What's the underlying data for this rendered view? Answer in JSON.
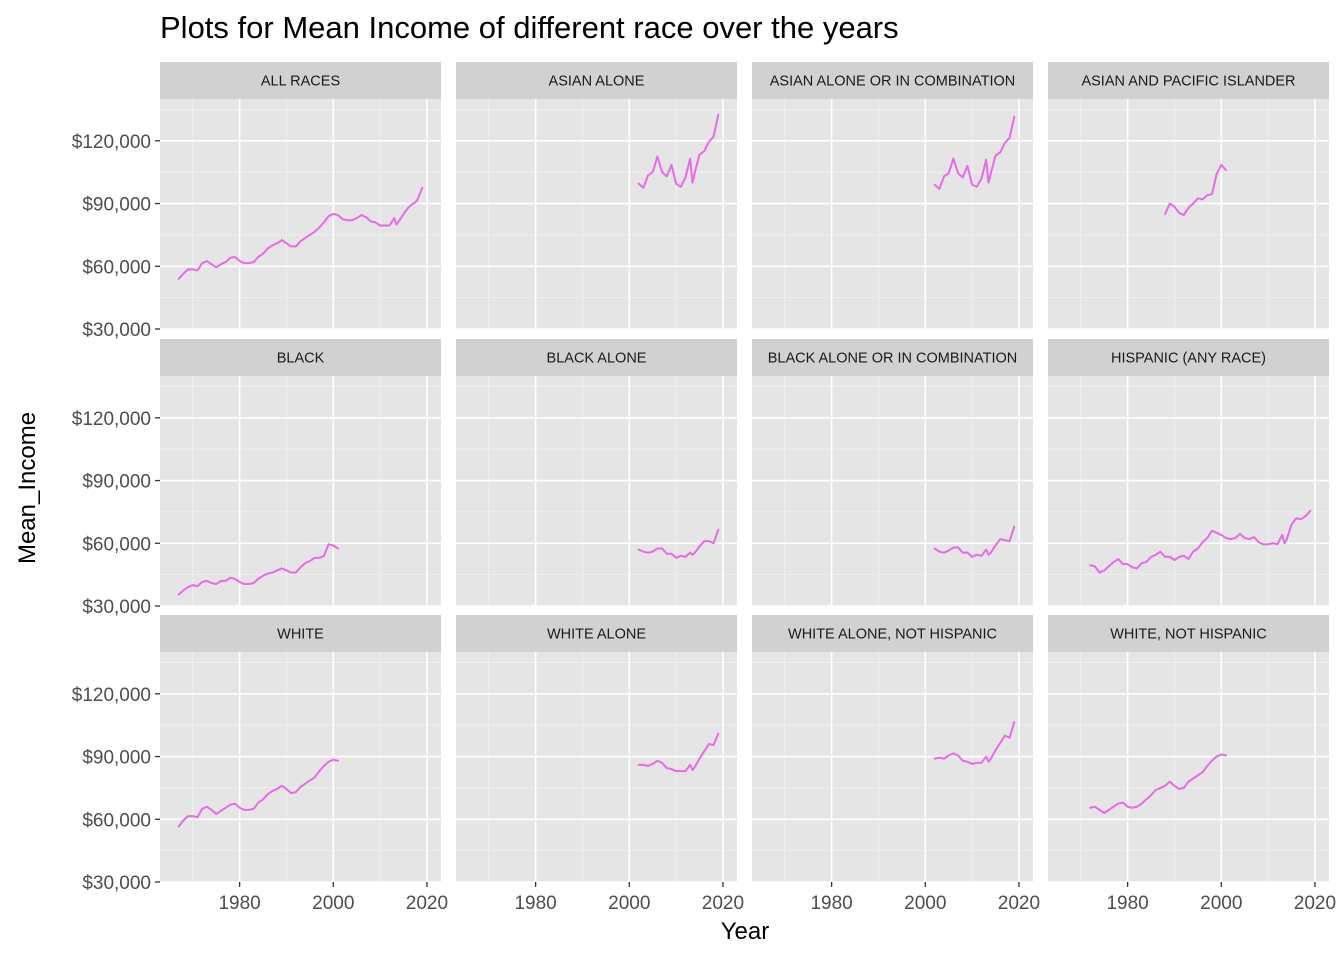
{
  "chart_data": {
    "type": "line",
    "title": "Plots for Mean Income of different race over the years",
    "xlabel": "Year",
    "ylabel": "Mean_Income",
    "xlim": [
      1963,
      2023
    ],
    "ylim": [
      30000,
      140000
    ],
    "x_ticks": [
      1980,
      2000,
      2020
    ],
    "x_tick_labels": [
      "1980",
      "2000",
      "2020"
    ],
    "y_ticks": [
      30000,
      60000,
      90000,
      120000
    ],
    "y_tick_labels": [
      "$30,000",
      "$60,000",
      "$90,000",
      "$120,000"
    ],
    "grid": true,
    "legend": "none",
    "line_color": "#e86ae9",
    "panel_background": "#e5e5e5",
    "strip_background": "#d1d1d1",
    "layout": {
      "rows": 3,
      "cols": 4
    },
    "facets": [
      {
        "name": "ALL RACES",
        "x": [
          1967,
          1968,
          1969,
          1970,
          1971,
          1972,
          1973,
          1974,
          1975,
          1976,
          1977,
          1978,
          1979,
          1980,
          1981,
          1982,
          1983,
          1984,
          1985,
          1986,
          1987,
          1988,
          1989,
          1990,
          1991,
          1992,
          1993,
          1994,
          1995,
          1996,
          1997,
          1998,
          1999,
          2000,
          2001,
          2002,
          2003,
          2004,
          2005,
          2006,
          2007,
          2008,
          2009,
          2010,
          2011,
          2012,
          2013,
          2013.5,
          2014,
          2015,
          2016,
          2017,
          2017.5,
          2018,
          2019
        ],
        "y": [
          54000,
          56500,
          58500,
          58500,
          58000,
          61500,
          62500,
          61000,
          59500,
          61000,
          62000,
          64000,
          64500,
          62500,
          61500,
          61500,
          62000,
          64500,
          66000,
          68500,
          70000,
          71000,
          72500,
          71000,
          69500,
          69500,
          72000,
          73500,
          75000,
          76500,
          78500,
          81000,
          84000,
          85000,
          84500,
          82500,
          82000,
          82000,
          83000,
          84500,
          83500,
          81500,
          81000,
          79500,
          79500,
          79500,
          83000,
          80000,
          81500,
          85000,
          88000,
          90000,
          90500,
          92000,
          97500
        ]
      },
      {
        "name": "ASIAN ALONE",
        "x": [
          2002,
          2003,
          2004,
          2005,
          2006,
          2007,
          2008,
          2009,
          2010,
          2011,
          2012,
          2013,
          2013.5,
          2014,
          2015,
          2016,
          2017,
          2018,
          2019
        ],
        "y": [
          99500,
          97500,
          103500,
          105000,
          112500,
          105000,
          103000,
          108500,
          99500,
          98000,
          102500,
          111500,
          100000,
          105000,
          113500,
          115000,
          119500,
          122000,
          132500
        ]
      },
      {
        "name": "ASIAN ALONE OR IN COMBINATION",
        "x": [
          2002,
          2003,
          2004,
          2005,
          2006,
          2007,
          2008,
          2009,
          2010,
          2011,
          2012,
          2013,
          2013.5,
          2014,
          2015,
          2016,
          2017,
          2018,
          2019
        ],
        "y": [
          99000,
          97000,
          103000,
          104500,
          111500,
          104500,
          102500,
          108000,
          99000,
          98000,
          102000,
          111000,
          100000,
          104500,
          113000,
          114500,
          119000,
          121500,
          131500
        ]
      },
      {
        "name": "ASIAN AND PACIFIC ISLANDER",
        "x": [
          1988,
          1989,
          1990,
          1991,
          1992,
          1993,
          1994,
          1995,
          1996,
          1997,
          1998,
          1999,
          2000,
          2001
        ],
        "y": [
          85000,
          90000,
          88500,
          85500,
          84500,
          88000,
          90000,
          92500,
          92000,
          94000,
          94500,
          104000,
          108500,
          106000
        ]
      },
      {
        "name": "BLACK",
        "x": [
          1967,
          1968,
          1969,
          1970,
          1971,
          1972,
          1973,
          1974,
          1975,
          1976,
          1977,
          1978,
          1979,
          1980,
          1981,
          1982,
          1983,
          1984,
          1985,
          1986,
          1987,
          1988,
          1989,
          1990,
          1991,
          1992,
          1993,
          1994,
          1995,
          1996,
          1997,
          1998,
          1999,
          2000,
          2001
        ],
        "y": [
          35500,
          37500,
          39000,
          40000,
          39500,
          41500,
          42000,
          41000,
          40500,
          42000,
          42000,
          43500,
          43000,
          41500,
          40500,
          40500,
          41000,
          43000,
          44500,
          45500,
          46000,
          47000,
          48000,
          47000,
          46000,
          46000,
          48500,
          50500,
          51500,
          53000,
          53000,
          54000,
          59500,
          59000,
          57500
        ]
      },
      {
        "name": "BLACK ALONE",
        "x": [
          2002,
          2003,
          2004,
          2005,
          2006,
          2007,
          2008,
          2009,
          2010,
          2011,
          2012,
          2013,
          2013.5,
          2014,
          2015,
          2016,
          2017,
          2018,
          2019
        ],
        "y": [
          57000,
          56000,
          55500,
          56000,
          57500,
          57500,
          55000,
          55000,
          53000,
          54000,
          53500,
          55500,
          54500,
          55500,
          58500,
          61000,
          61000,
          60000,
          66500
        ]
      },
      {
        "name": "BLACK ALONE OR IN COMBINATION",
        "x": [
          2002,
          2003,
          2004,
          2005,
          2006,
          2007,
          2008,
          2009,
          2010,
          2011,
          2012,
          2013,
          2013.5,
          2014,
          2015,
          2016,
          2017,
          2018,
          2019
        ],
        "y": [
          57500,
          56000,
          55500,
          56500,
          58000,
          58000,
          55500,
          55500,
          53500,
          54500,
          54000,
          57000,
          54500,
          55500,
          59000,
          62000,
          61500,
          61000,
          68000
        ]
      },
      {
        "name": "HISPANIC (ANY RACE)",
        "x": [
          1972,
          1973,
          1974,
          1975,
          1976,
          1977,
          1978,
          1979,
          1980,
          1981,
          1982,
          1983,
          1984,
          1985,
          1986,
          1987,
          1988,
          1989,
          1990,
          1991,
          1992,
          1993,
          1994,
          1995,
          1996,
          1997,
          1998,
          1999,
          2000,
          2001,
          2002,
          2003,
          2004,
          2005,
          2006,
          2007,
          2008,
          2009,
          2010,
          2011,
          2012,
          2013,
          2013.5,
          2014,
          2015,
          2016,
          2017,
          2018,
          2019
        ],
        "y": [
          49500,
          49000,
          46000,
          47000,
          49000,
          51000,
          52500,
          50000,
          50000,
          48500,
          48000,
          50500,
          51000,
          53500,
          54500,
          56000,
          53500,
          53500,
          52000,
          53500,
          54000,
          52500,
          56000,
          57500,
          60500,
          62500,
          66000,
          65000,
          64000,
          62500,
          62000,
          62500,
          64500,
          62500,
          62000,
          63000,
          60500,
          59500,
          59500,
          60000,
          59500,
          64000,
          60000,
          62000,
          69000,
          72000,
          71500,
          73000,
          75500
        ]
      },
      {
        "name": "WHITE",
        "x": [
          1967,
          1968,
          1969,
          1970,
          1971,
          1972,
          1973,
          1974,
          1975,
          1976,
          1977,
          1978,
          1979,
          1980,
          1981,
          1982,
          1983,
          1984,
          1985,
          1986,
          1987,
          1988,
          1989,
          1990,
          1991,
          1992,
          1993,
          1994,
          1995,
          1996,
          1997,
          1998,
          1999,
          2000,
          2001
        ],
        "y": [
          56500,
          59500,
          61500,
          61500,
          61000,
          65000,
          66000,
          64500,
          62500,
          64000,
          65500,
          67000,
          67500,
          65500,
          64500,
          64500,
          65000,
          68000,
          69500,
          72000,
          73500,
          74500,
          76000,
          74500,
          72500,
          73000,
          75500,
          77000,
          78500,
          80000,
          83000,
          85500,
          87500,
          88500,
          88000
        ]
      },
      {
        "name": "WHITE ALONE",
        "x": [
          2002,
          2003,
          2004,
          2005,
          2006,
          2007,
          2008,
          2009,
          2010,
          2011,
          2012,
          2013,
          2013.5,
          2014,
          2015,
          2016,
          2017,
          2018,
          2019
        ],
        "y": [
          86000,
          86000,
          85500,
          86500,
          88000,
          87000,
          84500,
          84000,
          83000,
          83000,
          83000,
          86000,
          83500,
          85000,
          89000,
          92500,
          96000,
          95500,
          101000
        ]
      },
      {
        "name": "WHITE ALONE, NOT HISPANIC",
        "x": [
          2002,
          2003,
          2004,
          2005,
          2006,
          2007,
          2008,
          2009,
          2010,
          2011,
          2012,
          2013,
          2013.5,
          2014,
          2015,
          2016,
          2017,
          2018,
          2019
        ],
        "y": [
          89000,
          89500,
          89000,
          90500,
          91500,
          90500,
          88000,
          87500,
          86500,
          87000,
          87000,
          90000,
          87500,
          89000,
          93000,
          96500,
          100000,
          99000,
          106500
        ]
      },
      {
        "name": "WHITE, NOT HISPANIC",
        "x": [
          1972,
          1973,
          1974,
          1975,
          1976,
          1977,
          1978,
          1979,
          1980,
          1981,
          1982,
          1983,
          1984,
          1985,
          1986,
          1987,
          1988,
          1989,
          1990,
          1991,
          1992,
          1993,
          1994,
          1995,
          1996,
          1997,
          1998,
          1999,
          2000,
          2001
        ],
        "y": [
          65500,
          66000,
          64500,
          63000,
          64500,
          66000,
          67500,
          68000,
          66000,
          65500,
          66000,
          67500,
          69500,
          71500,
          74000,
          75000,
          76000,
          78000,
          76000,
          74500,
          75000,
          78000,
          79500,
          81000,
          82500,
          85500,
          88000,
          90000,
          91000,
          90500
        ]
      }
    ]
  }
}
